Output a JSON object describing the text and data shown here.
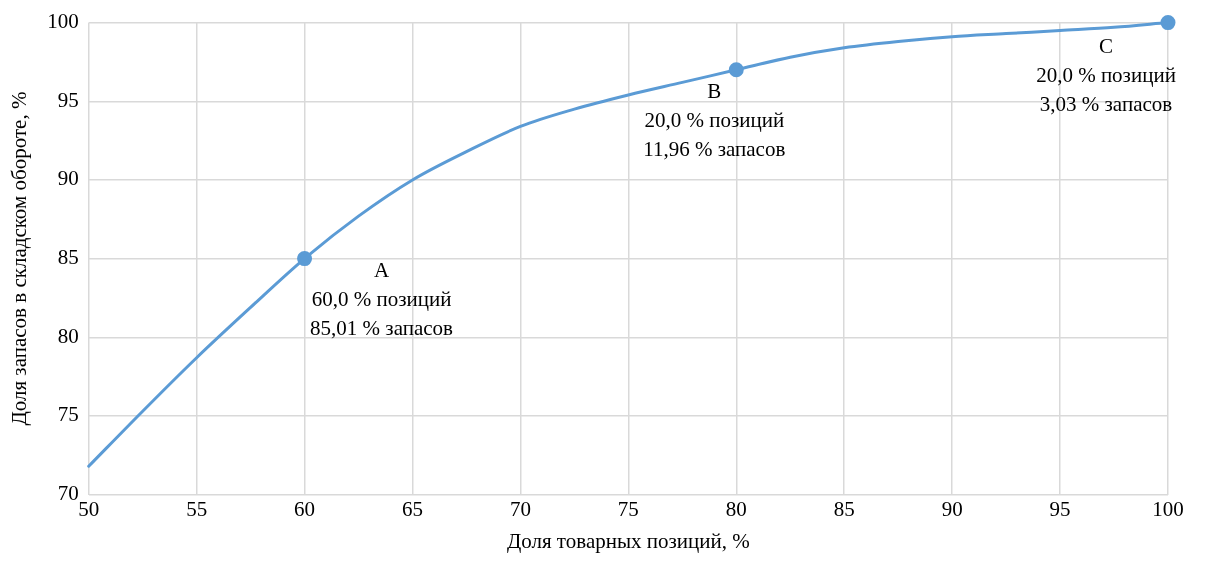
{
  "chart_data": {
    "type": "line",
    "xlabel": "Доля товарных позиций, %",
    "ylabel": "Доля запасов в складском обороте, %",
    "series": [
      {
        "color": "#5b9bd5",
        "marker": "none",
        "x": [
          50,
          52.5,
          55,
          57.5,
          60,
          62.5,
          65,
          67.5,
          70,
          72.5,
          75,
          77.5,
          80,
          82.5,
          85,
          87.5,
          90,
          92.5,
          95,
          97.5,
          100
        ],
        "values": [
          71.8,
          75.3,
          78.7,
          81.9,
          85,
          87.7,
          90,
          91.8,
          93.4,
          94.5,
          95.4,
          96.2,
          97,
          97.8,
          98.4,
          98.8,
          99.1,
          99.3,
          99.5,
          99.7,
          100
        ]
      },
      {
        "type": "scatter",
        "color": "#5b9bd5",
        "marker": "circle",
        "x": [
          60,
          80,
          100
        ],
        "values": [
          85,
          97,
          100
        ]
      }
    ],
    "xlim": [
      50,
      100
    ],
    "xticks": [
      50,
      55,
      60,
      65,
      70,
      75,
      80,
      85,
      90,
      95,
      100
    ],
    "ylim": [
      70,
      100
    ],
    "yticks": [
      70,
      75,
      80,
      85,
      90,
      95,
      100
    ],
    "grid": true,
    "legend": false,
    "annotations": [
      {
        "text": "A\n60,0 % позиций\n85,01 % запасов",
        "x": 60,
        "y": 85
      },
      {
        "text": "B\n20,0 % позиций\n11,96 % запасов",
        "x": 80,
        "y": 97
      },
      {
        "text": "C\n20,0 % позиций\n3,03 % запасов",
        "x": 100,
        "y": 100
      }
    ]
  }
}
